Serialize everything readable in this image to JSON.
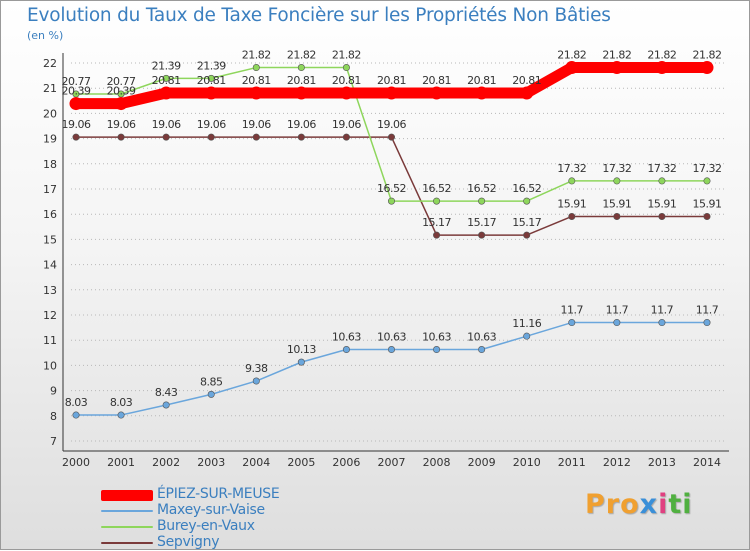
{
  "chart_data": {
    "type": "line",
    "title": "Evolution du Taux de Taxe Foncière sur les Propriétés Non Bâties",
    "unit_label": "(en %)",
    "x": [
      "2000",
      "2001",
      "2002",
      "2003",
      "2004",
      "2005",
      "2006",
      "2007",
      "2008",
      "2009",
      "2010",
      "2011",
      "2012",
      "2013",
      "2014"
    ],
    "ylim": [
      7,
      22
    ],
    "yticks": [
      "7",
      "8",
      "9",
      "10",
      "11",
      "12",
      "13",
      "14",
      "15",
      "16",
      "17",
      "18",
      "19",
      "20",
      "21",
      "22"
    ],
    "grid": "horizontal-dotted",
    "series": [
      {
        "name": "ÉPIEZ-SUR-MEUSE",
        "color": "#ff0000",
        "values": [
          20.39,
          20.39,
          20.81,
          20.81,
          20.81,
          20.81,
          20.81,
          20.81,
          20.81,
          20.81,
          20.81,
          21.82,
          21.82,
          21.82,
          21.82
        ],
        "labels": [
          "20.39",
          "20.39",
          "20.81",
          "20.81",
          "20.81",
          "20.81",
          "20.81",
          "20.81",
          "20.81",
          "20.81",
          "20.81",
          "21.82",
          "21.82",
          "21.82",
          "21.82"
        ]
      },
      {
        "name": "Maxey-sur-Vaise",
        "color": "#6aa6dc",
        "values": [
          8.03,
          8.03,
          8.43,
          8.85,
          9.38,
          10.13,
          10.63,
          10.63,
          10.63,
          10.63,
          11.16,
          11.7,
          11.7,
          11.7,
          11.7
        ],
        "labels": [
          "8.03",
          "8.03",
          "8.43",
          "8.85",
          "9.38",
          "10.13",
          "10.63",
          "10.63",
          "10.63",
          "10.63",
          "11.16",
          "11.7",
          "11.7",
          "11.7",
          "11.7"
        ]
      },
      {
        "name": "Burey-en-Vaux",
        "color": "#8ed65c",
        "values": [
          20.77,
          20.77,
          21.39,
          21.39,
          21.82,
          21.82,
          21.82,
          16.52,
          16.52,
          16.52,
          16.52,
          17.32,
          17.32,
          17.32,
          17.32
        ],
        "labels": [
          "20.77",
          "20.77",
          "21.39",
          "21.39",
          "21.82",
          "21.82",
          "21.82",
          "16.52",
          "16.52",
          "16.52",
          "16.52",
          "17.32",
          "17.32",
          "17.32",
          "17.32"
        ]
      },
      {
        "name": "Sepvigny",
        "color": "#7a3a3a",
        "values": [
          19.06,
          19.06,
          19.06,
          19.06,
          19.06,
          19.06,
          19.06,
          19.06,
          15.17,
          15.17,
          15.17,
          15.91,
          15.91,
          15.91,
          15.91
        ],
        "labels": [
          "19.06",
          "19.06",
          "19.06",
          "19.06",
          "19.06",
          "19.06",
          "19.06",
          "19.06",
          "15.17",
          "15.17",
          "15.17",
          "15.91",
          "15.91",
          "15.91",
          "15.91"
        ]
      }
    ],
    "legend": [
      "ÉPIEZ-SUR-MEUSE",
      "Maxey-sur-Vaise",
      "Burey-en-Vaux",
      "Sepvigny"
    ],
    "legend_position": "bottom-left"
  },
  "logo": {
    "p1": "Pro",
    "p2": "x",
    "p3": "i",
    "p4": "ti"
  }
}
